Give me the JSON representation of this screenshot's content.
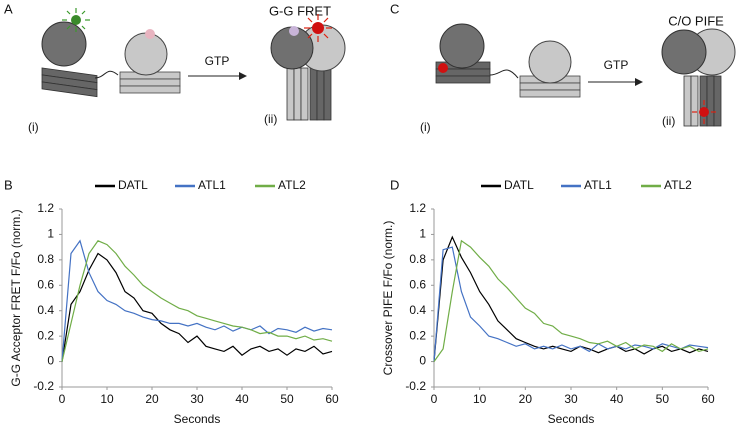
{
  "diagrams": [
    {
      "panel_label": "A",
      "arrow_label": "GTP",
      "product_label": "G-G FRET",
      "state_labels": [
        "(i)",
        "(ii)"
      ]
    },
    {
      "panel_label": "C",
      "arrow_label": "GTP",
      "product_label": "C/O PIFE",
      "state_labels": [
        "(i)",
        "(ii)"
      ]
    }
  ],
  "chart_data": [
    {
      "type": "line",
      "panel_label": "B",
      "ylabel": "G-G Acceptor FRET F/Fo (norm.)",
      "xlabel": "Seconds",
      "xlim": [
        0,
        60
      ],
      "xticks": [
        0,
        10,
        20,
        30,
        40,
        50,
        60
      ],
      "ylim": [
        -0.2,
        1.2
      ],
      "yticks": [
        -0.2,
        0,
        0.2,
        0.4,
        0.6,
        0.8,
        1,
        1.2
      ],
      "x": [
        0,
        2,
        4,
        6,
        8,
        10,
        12,
        14,
        16,
        18,
        20,
        22,
        24,
        26,
        28,
        30,
        32,
        34,
        36,
        38,
        40,
        42,
        44,
        46,
        48,
        50,
        52,
        54,
        56,
        58,
        60
      ],
      "series": [
        {
          "name": "DATL",
          "color": "#000000",
          "values": [
            0,
            0.45,
            0.55,
            0.72,
            0.85,
            0.8,
            0.7,
            0.55,
            0.5,
            0.4,
            0.38,
            0.3,
            0.25,
            0.22,
            0.15,
            0.2,
            0.12,
            0.1,
            0.08,
            0.12,
            0.05,
            0.1,
            0.12,
            0.08,
            0.1,
            0.05,
            0.1,
            0.08,
            0.12,
            0.06,
            0.08
          ]
        },
        {
          "name": "ATL1",
          "color": "#4472c4",
          "values": [
            0,
            0.85,
            0.95,
            0.7,
            0.55,
            0.48,
            0.45,
            0.4,
            0.38,
            0.35,
            0.33,
            0.32,
            0.3,
            0.3,
            0.28,
            0.3,
            0.27,
            0.25,
            0.28,
            0.24,
            0.27,
            0.25,
            0.28,
            0.22,
            0.26,
            0.25,
            0.23,
            0.27,
            0.24,
            0.26,
            0.25
          ]
        },
        {
          "name": "ATL2",
          "color": "#70ad47",
          "values": [
            0,
            0.3,
            0.6,
            0.85,
            0.95,
            0.92,
            0.85,
            0.75,
            0.68,
            0.6,
            0.55,
            0.5,
            0.46,
            0.42,
            0.4,
            0.36,
            0.34,
            0.32,
            0.3,
            0.28,
            0.27,
            0.25,
            0.22,
            0.23,
            0.2,
            0.2,
            0.18,
            0.2,
            0.17,
            0.18,
            0.16
          ]
        }
      ]
    },
    {
      "type": "line",
      "panel_label": "D",
      "ylabel": "Crossover PIFE F/Fo (norm.)",
      "xlabel": "Seconds",
      "xlim": [
        0,
        60
      ],
      "xticks": [
        0,
        10,
        20,
        30,
        40,
        50,
        60
      ],
      "ylim": [
        -0.2,
        1.2
      ],
      "yticks": [
        -0.2,
        0,
        0.2,
        0.4,
        0.6,
        0.8,
        1,
        1.2
      ],
      "x": [
        0,
        2,
        4,
        6,
        8,
        10,
        12,
        14,
        16,
        18,
        20,
        22,
        24,
        26,
        28,
        30,
        32,
        34,
        36,
        38,
        40,
        42,
        44,
        46,
        48,
        50,
        52,
        54,
        56,
        58,
        60
      ],
      "series": [
        {
          "name": "DATL",
          "color": "#000000",
          "values": [
            0,
            0.8,
            0.98,
            0.82,
            0.7,
            0.55,
            0.45,
            0.32,
            0.25,
            0.18,
            0.15,
            0.12,
            0.1,
            0.12,
            0.1,
            0.08,
            0.12,
            0.1,
            0.07,
            0.1,
            0.12,
            0.08,
            0.1,
            0.06,
            0.1,
            0.12,
            0.08,
            0.1,
            0.07,
            0.1,
            0.08
          ]
        },
        {
          "name": "ATL1",
          "color": "#4472c4",
          "values": [
            0,
            0.88,
            0.9,
            0.55,
            0.35,
            0.28,
            0.2,
            0.18,
            0.15,
            0.12,
            0.14,
            0.1,
            0.12,
            0.1,
            0.13,
            0.1,
            0.12,
            0.08,
            0.14,
            0.1,
            0.12,
            0.1,
            0.13,
            0.12,
            0.1,
            0.14,
            0.12,
            0.1,
            0.13,
            0.12,
            0.11
          ]
        },
        {
          "name": "ATL2",
          "color": "#70ad47",
          "values": [
            0,
            0.1,
            0.55,
            0.95,
            0.9,
            0.82,
            0.75,
            0.65,
            0.58,
            0.5,
            0.42,
            0.38,
            0.3,
            0.28,
            0.22,
            0.2,
            0.18,
            0.15,
            0.14,
            0.16,
            0.12,
            0.15,
            0.1,
            0.13,
            0.12,
            0.08,
            0.14,
            0.1,
            0.12,
            0.08,
            0.1
          ]
        }
      ]
    }
  ]
}
